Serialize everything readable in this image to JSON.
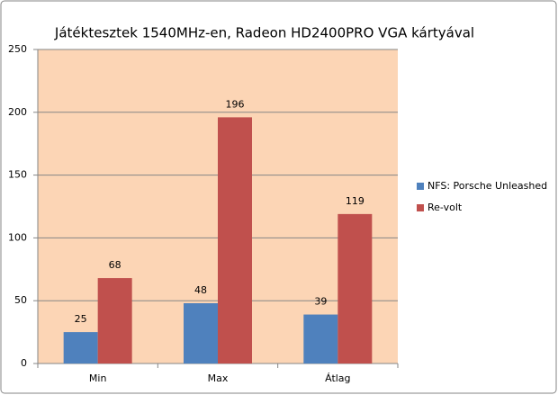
{
  "chart_data": {
    "type": "bar",
    "title": "Játéktesztek 1540MHz-en, Radeon HD2400PRO VGA kártyával",
    "categories": [
      "Min",
      "Max",
      "Átlag"
    ],
    "series": [
      {
        "name": "NFS: Porsche Unleashed",
        "color": "#4f81bd",
        "values": [
          25,
          48,
          39
        ]
      },
      {
        "name": "Re-volt",
        "color": "#c0504d",
        "values": [
          68,
          196,
          119
        ]
      }
    ],
    "ylim": [
      0,
      250
    ],
    "yticks": [
      0,
      50,
      100,
      150,
      200,
      250
    ],
    "grid": true,
    "plot_background": "#fcd5b5",
    "legend": "right"
  }
}
